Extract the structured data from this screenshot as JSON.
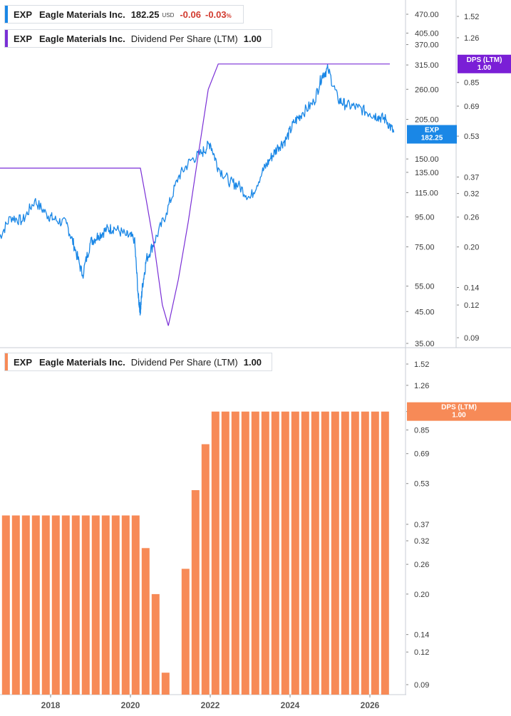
{
  "legend_price": {
    "ticker": "EXP",
    "name": "Eagle Materials Inc.",
    "price": "182.25",
    "currency": "USD",
    "change": "-0.06",
    "change_pct": "-0.03",
    "pct_sign": "%"
  },
  "legend_dps_top": {
    "ticker": "EXP",
    "name": "Eagle Materials Inc.",
    "indicator": "Dividend Per Share (LTM)",
    "value": "1.00"
  },
  "legend_dps_bottom": {
    "ticker": "EXP",
    "name": "Eagle Materials Inc.",
    "indicator": "Dividend Per Share (LTM)",
    "value": "1.00"
  },
  "colors": {
    "price": "#1a87e6",
    "dps_line": "#7a2fd6",
    "dps_bar": "#f78a57",
    "change": "#d23a2e",
    "badge_purple": "#7a1fd6"
  },
  "badges": {
    "price": {
      "line1": "EXP",
      "line2": "182.25"
    },
    "dps_top": {
      "line1": "DPS (LTM)",
      "line2": "1.00"
    },
    "dps_bottom": {
      "line1": "DPS (LTM)",
      "line2": "1.00"
    }
  },
  "chart_data": [
    {
      "type": "line",
      "panel": "top",
      "series": [
        {
          "name": "EXP",
          "axis": "left",
          "scale": "log",
          "x": [
            2016.7,
            2017.0,
            2017.3,
            2017.6,
            2017.9,
            2018.1,
            2018.4,
            2018.6,
            2018.8,
            2019.0,
            2019.2,
            2019.4,
            2019.6,
            2019.9,
            2020.1,
            2020.2,
            2020.25,
            2020.3,
            2020.4,
            2020.6,
            2020.9,
            2021.2,
            2021.5,
            2021.8,
            2022.0,
            2022.2,
            2022.5,
            2022.7,
            2023.0,
            2023.3,
            2023.5,
            2023.7,
            2023.9,
            2024.1,
            2024.3,
            2024.6,
            2024.8,
            2024.95,
            2025.2,
            2025.4,
            2025.7,
            2026.0,
            2026.2,
            2026.4,
            2026.6
          ],
          "values": [
            80,
            95,
            92,
            108,
            97,
            93,
            90,
            75,
            60,
            78,
            82,
            86,
            87,
            82,
            80,
            50,
            45,
            55,
            68,
            78,
            98,
            130,
            148,
            158,
            170,
            140,
            125,
            122,
            110,
            135,
            150,
            165,
            175,
            200,
            215,
            235,
            290,
            305,
            240,
            230,
            225,
            215,
            210,
            205,
            185
          ]
        },
        {
          "name": "DPS (LTM)",
          "axis": "right",
          "scale": "log",
          "x": [
            2016.5,
            2020.25,
            2020.4,
            2020.6,
            2020.8,
            2020.95,
            2021.2,
            2021.45,
            2021.7,
            2021.95,
            2022.2,
            2026.5
          ],
          "values": [
            0.4,
            0.4,
            0.3,
            0.2,
            0.12,
            0.1,
            0.15,
            0.25,
            0.45,
            0.8,
            1.0,
            1.0
          ]
        }
      ],
      "left_axis_ticks": [
        "470.00",
        "405.00",
        "370.00",
        "315.00",
        "260.00",
        "205.00",
        "150.00",
        "135.00",
        "115.00",
        "95.00",
        "75.00",
        "55.00",
        "45.00",
        "35.00"
      ],
      "right_axis_ticks": [
        "1.52",
        "1.26",
        "0.85",
        "0.69",
        "0.53",
        "0.37",
        "0.32",
        "0.26",
        "0.20",
        "0.14",
        "0.12",
        "0.09"
      ]
    },
    {
      "type": "bar",
      "panel": "bottom",
      "series": [
        {
          "name": "DPS (LTM)",
          "scale": "log",
          "x": [
            2016.88,
            2017.13,
            2017.38,
            2017.63,
            2017.88,
            2018.13,
            2018.38,
            2018.63,
            2018.88,
            2019.13,
            2019.38,
            2019.63,
            2019.88,
            2020.13,
            2020.38,
            2020.63,
            2020.88,
            2021.13,
            2021.38,
            2021.63,
            2021.88,
            2022.13,
            2022.38,
            2022.63,
            2022.88,
            2023.13,
            2023.38,
            2023.63,
            2023.88,
            2024.13,
            2024.38,
            2024.63,
            2024.88,
            2025.13,
            2025.38,
            2025.63,
            2025.88,
            2026.13,
            2026.38
          ],
          "values": [
            0.4,
            0.4,
            0.4,
            0.4,
            0.4,
            0.4,
            0.4,
            0.4,
            0.4,
            0.4,
            0.4,
            0.4,
            0.4,
            0.4,
            0.3,
            0.2,
            0.1,
            0.0,
            0.25,
            0.5,
            0.75,
            1.0,
            1.0,
            1.0,
            1.0,
            1.0,
            1.0,
            1.0,
            1.0,
            1.0,
            1.0,
            1.0,
            1.0,
            1.0,
            1.0,
            1.0,
            1.0,
            1.0,
            1.0
          ]
        }
      ],
      "right_axis_ticks": [
        "1.52",
        "1.26",
        "1.00",
        "0.85",
        "0.69",
        "0.53",
        "0.37",
        "0.32",
        "0.26",
        "0.20",
        "0.14",
        "0.12",
        "0.09"
      ],
      "x_ticks": [
        "2018",
        "2020",
        "2022",
        "2024",
        "2026"
      ]
    }
  ]
}
